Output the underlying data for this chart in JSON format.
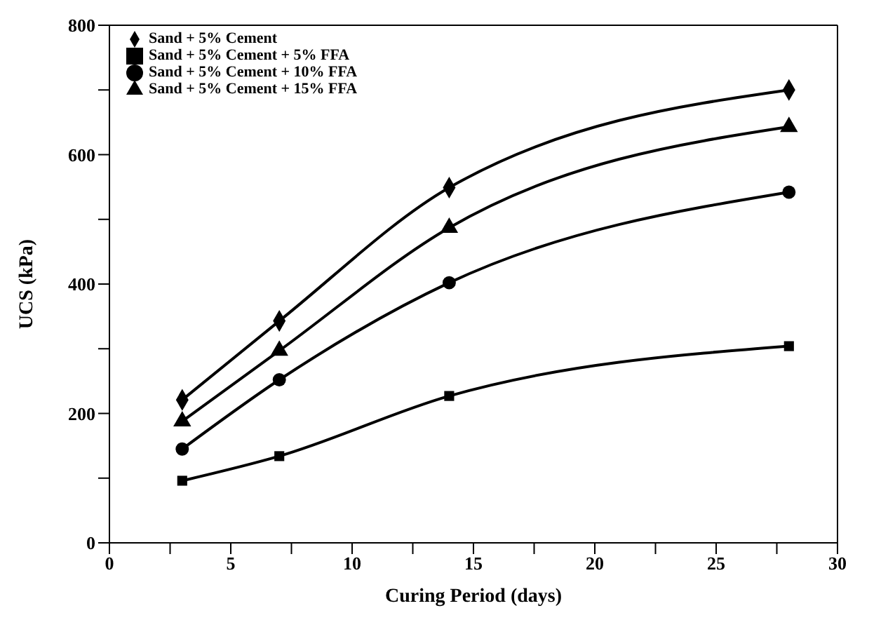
{
  "chart_data": {
    "type": "line",
    "xlabel": "Curing Period (days)",
    "ylabel": "UCS (kPa)",
    "x": [
      3,
      7,
      14,
      28
    ],
    "series": [
      {
        "name": "Sand + 5% Cement",
        "color": "#000000",
        "marker": "diamond",
        "values": [
          221,
          343,
          549,
          700
        ]
      },
      {
        "name": "Sand + 5% Cement + 5% FFA",
        "color": "#000000",
        "marker": "square",
        "values": [
          96,
          134,
          227,
          304
        ]
      },
      {
        "name": "Sand + 5% Cement + 10% FFA",
        "color": "#000000",
        "marker": "circle",
        "values": [
          145,
          252,
          402,
          542
        ]
      },
      {
        "name": "Sand + 5% Cement + 15% FFA",
        "color": "#000000",
        "marker": "triangle",
        "values": [
          188,
          297,
          487,
          643
        ]
      }
    ],
    "xlim": [
      0,
      30
    ],
    "xticks": [
      0,
      {
        "value": 2.5,
        "label": null
      },
      5,
      {
        "value": 7.5,
        "label": null
      },
      10,
      {
        "value": 12.5,
        "label": null
      },
      15,
      {
        "value": 17.5,
        "label": null
      },
      20,
      {
        "value": 22.5,
        "label": null
      },
      25,
      {
        "value": 27.5,
        "label": null
      },
      30
    ],
    "ylim": [
      0,
      800
    ],
    "yticks": [
      0,
      {
        "value": 100,
        "label": null
      },
      200,
      {
        "value": 300,
        "label": null
      },
      400,
      {
        "value": 500,
        "label": null
      },
      600,
      {
        "value": 700,
        "label": null
      },
      800
    ],
    "grid": false,
    "legend": "top left",
    "line_style": "solid"
  }
}
